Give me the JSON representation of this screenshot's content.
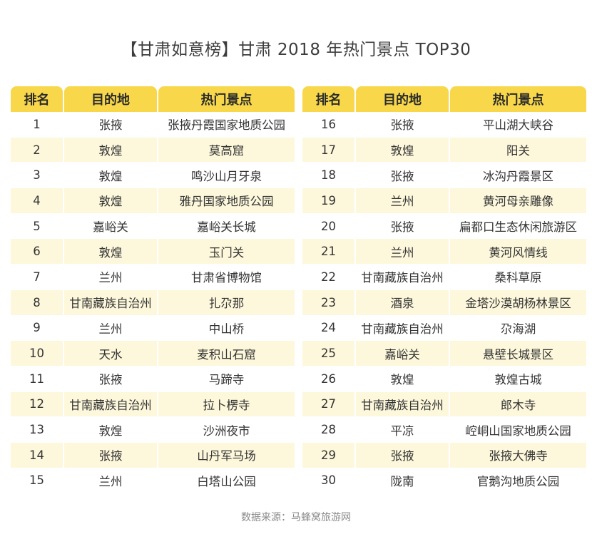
{
  "title": "【甘肃如意榜】甘肃 2018 年热门景点 TOP30",
  "headers": {
    "rank": "排名",
    "destination": "目的地",
    "spot": "热门景点"
  },
  "colors": {
    "header_bg": "#f8d84a",
    "stripe_bg": "#fdf8dc"
  },
  "rows": [
    {
      "rank": "1",
      "destination": "张掖",
      "spot": "张掖丹霞国家地质公园"
    },
    {
      "rank": "2",
      "destination": "敦煌",
      "spot": "莫高窟"
    },
    {
      "rank": "3",
      "destination": "敦煌",
      "spot": "鸣沙山月牙泉"
    },
    {
      "rank": "4",
      "destination": "敦煌",
      "spot": "雅丹国家地质公园"
    },
    {
      "rank": "5",
      "destination": "嘉峪关",
      "spot": "嘉峪关长城"
    },
    {
      "rank": "6",
      "destination": "敦煌",
      "spot": "玉门关"
    },
    {
      "rank": "7",
      "destination": "兰州",
      "spot": "甘肃省博物馆"
    },
    {
      "rank": "8",
      "destination": "甘南藏族自治州",
      "spot": "扎尕那"
    },
    {
      "rank": "9",
      "destination": "兰州",
      "spot": "中山桥"
    },
    {
      "rank": "10",
      "destination": "天水",
      "spot": "麦积山石窟"
    },
    {
      "rank": "11",
      "destination": "张掖",
      "spot": "马蹄寺"
    },
    {
      "rank": "12",
      "destination": "甘南藏族自治州",
      "spot": "拉卜楞寺"
    },
    {
      "rank": "13",
      "destination": "敦煌",
      "spot": "沙洲夜市"
    },
    {
      "rank": "14",
      "destination": "张掖",
      "spot": "山丹军马场"
    },
    {
      "rank": "15",
      "destination": "兰州",
      "spot": "白塔山公园"
    },
    {
      "rank": "16",
      "destination": "张掖",
      "spot": "平山湖大峡谷"
    },
    {
      "rank": "17",
      "destination": "敦煌",
      "spot": "阳关"
    },
    {
      "rank": "18",
      "destination": "张掖",
      "spot": "冰沟丹霞景区"
    },
    {
      "rank": "19",
      "destination": "兰州",
      "spot": "黄河母亲雕像"
    },
    {
      "rank": "20",
      "destination": "张掖",
      "spot": "扁都口生态休闲旅游区"
    },
    {
      "rank": "21",
      "destination": "兰州",
      "spot": "黄河风情线"
    },
    {
      "rank": "22",
      "destination": "甘南藏族自治州",
      "spot": "桑科草原"
    },
    {
      "rank": "23",
      "destination": "酒泉",
      "spot": "金塔沙漠胡杨林景区"
    },
    {
      "rank": "24",
      "destination": "甘南藏族自治州",
      "spot": "尕海湖"
    },
    {
      "rank": "25",
      "destination": "嘉峪关",
      "spot": "悬壁长城景区"
    },
    {
      "rank": "26",
      "destination": "敦煌",
      "spot": "敦煌古城"
    },
    {
      "rank": "27",
      "destination": "甘南藏族自治州",
      "spot": "郎木寺"
    },
    {
      "rank": "28",
      "destination": "平凉",
      "spot": "崆峒山国家地质公园"
    },
    {
      "rank": "29",
      "destination": "张掖",
      "spot": "张掖大佛寺"
    },
    {
      "rank": "30",
      "destination": "陇南",
      "spot": "官鹅沟地质公园"
    }
  ],
  "source": "数据来源：马蜂窝旅游网"
}
